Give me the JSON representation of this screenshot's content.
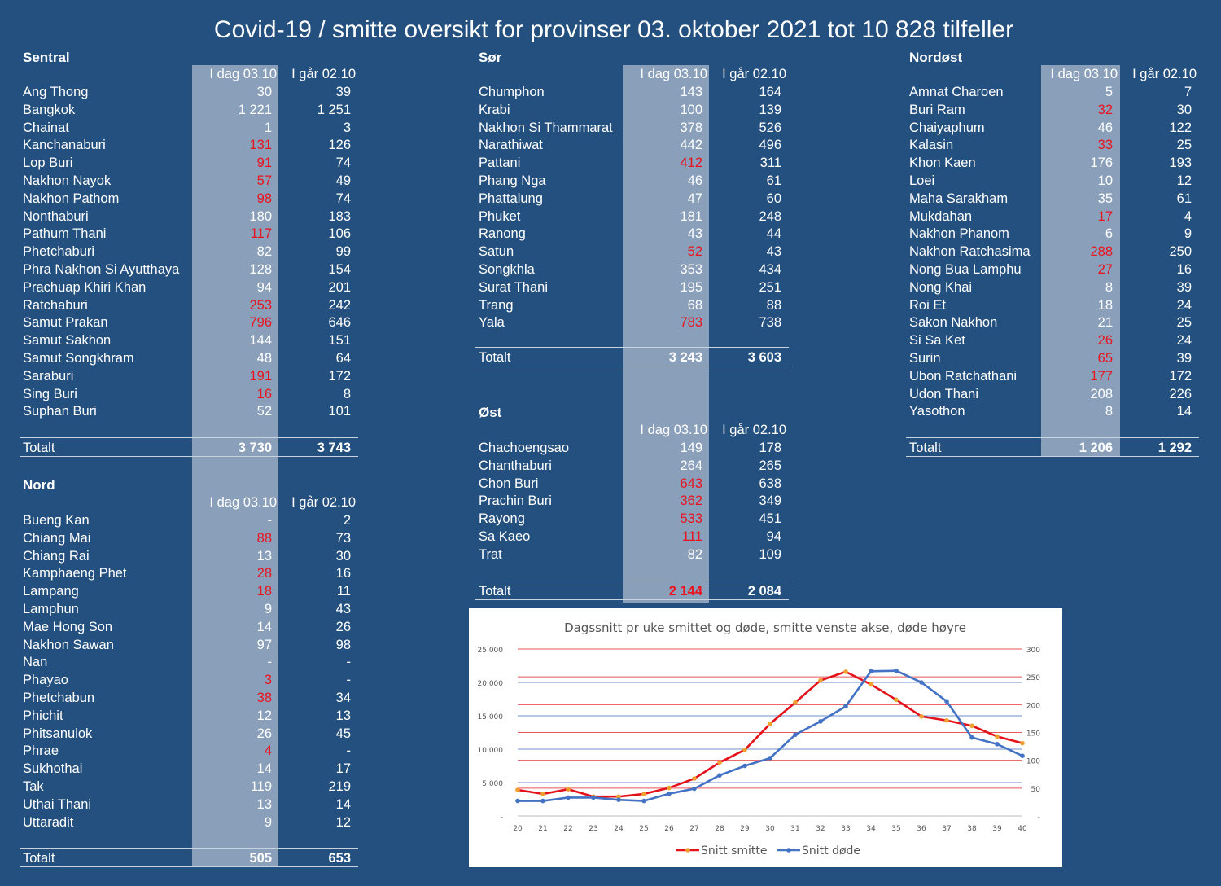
{
  "title": "Covid-19 / smitte oversikt for provinser 03. oktober 2021 tot 10 828 tilfeller",
  "col_today": "I dag 03.10",
  "col_yesterday": "I går 02.10",
  "colors": {
    "background": "#24507f",
    "shade": "#8a9fba",
    "increase": "#e8141f"
  },
  "sections": {
    "sentral": {
      "title": "Sentral",
      "rows": [
        {
          "name": "Ang Thong",
          "today": "30",
          "yesterday": "39",
          "up": false
        },
        {
          "name": "Bangkok",
          "today": "1 221",
          "yesterday": "1 251",
          "up": false
        },
        {
          "name": "Chainat",
          "today": "1",
          "yesterday": "3",
          "up": false
        },
        {
          "name": "Kanchanaburi",
          "today": "131",
          "yesterday": "126",
          "up": true
        },
        {
          "name": "Lop Buri",
          "today": "91",
          "yesterday": "74",
          "up": true
        },
        {
          "name": "Nakhon Nayok",
          "today": "57",
          "yesterday": "49",
          "up": true
        },
        {
          "name": "Nakhon Pathom",
          "today": "98",
          "yesterday": "74",
          "up": true
        },
        {
          "name": "Nonthaburi",
          "today": "180",
          "yesterday": "183",
          "up": false
        },
        {
          "name": "Pathum Thani",
          "today": "117",
          "yesterday": "106",
          "up": true
        },
        {
          "name": "Phetchaburi",
          "today": "82",
          "yesterday": "99",
          "up": false
        },
        {
          "name": "Phra Nakhon Si Ayutthaya",
          "today": "128",
          "yesterday": "154",
          "up": false
        },
        {
          "name": "Prachuap Khiri Khan",
          "today": "94",
          "yesterday": "201",
          "up": false
        },
        {
          "name": "Ratchaburi",
          "today": "253",
          "yesterday": "242",
          "up": true
        },
        {
          "name": "Samut Prakan",
          "today": "796",
          "yesterday": "646",
          "up": true
        },
        {
          "name": "Samut Sakhon",
          "today": "144",
          "yesterday": "151",
          "up": false
        },
        {
          "name": "Samut Songkhram",
          "today": "48",
          "yesterday": "64",
          "up": false
        },
        {
          "name": "Saraburi",
          "today": "191",
          "yesterday": "172",
          "up": true
        },
        {
          "name": "Sing Buri",
          "today": "16",
          "yesterday": "8",
          "up": true
        },
        {
          "name": "Suphan Buri",
          "today": "52",
          "yesterday": "101",
          "up": false
        }
      ],
      "total": {
        "label": "Totalt",
        "today": "3 730",
        "yesterday": "3 743",
        "up": false
      }
    },
    "nord": {
      "title": "Nord",
      "rows": [
        {
          "name": "Bueng Kan",
          "today": "-",
          "yesterday": "2",
          "up": false
        },
        {
          "name": "Chiang Mai",
          "today": "88",
          "yesterday": "73",
          "up": true
        },
        {
          "name": "Chiang Rai",
          "today": "13",
          "yesterday": "30",
          "up": false
        },
        {
          "name": "Kamphaeng Phet",
          "today": "28",
          "yesterday": "16",
          "up": true
        },
        {
          "name": "Lampang",
          "today": "18",
          "yesterday": "11",
          "up": true
        },
        {
          "name": "Lamphun",
          "today": "9",
          "yesterday": "43",
          "up": false
        },
        {
          "name": "Mae Hong Son",
          "today": "14",
          "yesterday": "26",
          "up": false
        },
        {
          "name": "Nakhon Sawan",
          "today": "97",
          "yesterday": "98",
          "up": false
        },
        {
          "name": "Nan",
          "today": "-",
          "yesterday": "-",
          "up": false
        },
        {
          "name": "Phayao",
          "today": "3",
          "yesterday": "-",
          "up": true
        },
        {
          "name": "Phetchabun",
          "today": "38",
          "yesterday": "34",
          "up": true
        },
        {
          "name": "Phichit",
          "today": "12",
          "yesterday": "13",
          "up": false
        },
        {
          "name": "Phitsanulok",
          "today": "26",
          "yesterday": "45",
          "up": false
        },
        {
          "name": "Phrae",
          "today": "4",
          "yesterday": "-",
          "up": true
        },
        {
          "name": "Sukhothai",
          "today": "14",
          "yesterday": "17",
          "up": false
        },
        {
          "name": "Tak",
          "today": "119",
          "yesterday": "219",
          "up": false
        },
        {
          "name": "Uthai Thani",
          "today": "13",
          "yesterday": "14",
          "up": false
        },
        {
          "name": "Uttaradit",
          "today": "9",
          "yesterday": "12",
          "up": false
        }
      ],
      "total": {
        "label": "Totalt",
        "today": "505",
        "yesterday": "653",
        "up": false
      }
    },
    "sor": {
      "title": "Sør",
      "rows": [
        {
          "name": "Chumphon",
          "today": "143",
          "yesterday": "164",
          "up": false
        },
        {
          "name": "Krabi",
          "today": "100",
          "yesterday": "139",
          "up": false
        },
        {
          "name": "Nakhon Si Thammarat",
          "today": "378",
          "yesterday": "526",
          "up": false
        },
        {
          "name": "Narathiwat",
          "today": "442",
          "yesterday": "496",
          "up": false
        },
        {
          "name": "Pattani",
          "today": "412",
          "yesterday": "311",
          "up": true
        },
        {
          "name": "Phang Nga",
          "today": "46",
          "yesterday": "61",
          "up": false
        },
        {
          "name": "Phattalung",
          "today": "47",
          "yesterday": "60",
          "up": false
        },
        {
          "name": "Phuket",
          "today": "181",
          "yesterday": "248",
          "up": false
        },
        {
          "name": "Ranong",
          "today": "43",
          "yesterday": "44",
          "up": false
        },
        {
          "name": "Satun",
          "today": "52",
          "yesterday": "43",
          "up": true
        },
        {
          "name": "Songkhla",
          "today": "353",
          "yesterday": "434",
          "up": false
        },
        {
          "name": "Surat Thani",
          "today": "195",
          "yesterday": "251",
          "up": false
        },
        {
          "name": "Trang",
          "today": "68",
          "yesterday": "88",
          "up": false
        },
        {
          "name": "Yala",
          "today": "783",
          "yesterday": "738",
          "up": true
        }
      ],
      "total": {
        "label": "Totalt",
        "today": "3 243",
        "yesterday": "3 603",
        "up": false
      }
    },
    "ost": {
      "title": "Øst",
      "rows": [
        {
          "name": "Chachoengsao",
          "today": "149",
          "yesterday": "178",
          "up": false
        },
        {
          "name": "Chanthaburi",
          "today": "264",
          "yesterday": "265",
          "up": false
        },
        {
          "name": "Chon Buri",
          "today": "643",
          "yesterday": "638",
          "up": true
        },
        {
          "name": "Prachin Buri",
          "today": "362",
          "yesterday": "349",
          "up": true
        },
        {
          "name": "Rayong",
          "today": "533",
          "yesterday": "451",
          "up": true
        },
        {
          "name": "Sa Kaeo",
          "today": "111",
          "yesterday": "94",
          "up": true
        },
        {
          "name": "Trat",
          "today": "82",
          "yesterday": "109",
          "up": false
        }
      ],
      "total": {
        "label": "Totalt",
        "today": "2 144",
        "yesterday": "2 084",
        "up": true
      }
    },
    "nordost": {
      "title": "Nordøst",
      "rows": [
        {
          "name": "Amnat Charoen",
          "today": "5",
          "yesterday": "7",
          "up": false
        },
        {
          "name": "Buri Ram",
          "today": "32",
          "yesterday": "30",
          "up": true
        },
        {
          "name": "Chaiyaphum",
          "today": "46",
          "yesterday": "122",
          "up": false
        },
        {
          "name": "Kalasin",
          "today": "33",
          "yesterday": "25",
          "up": true
        },
        {
          "name": "Khon Kaen",
          "today": "176",
          "yesterday": "193",
          "up": false
        },
        {
          "name": "Loei",
          "today": "10",
          "yesterday": "12",
          "up": false
        },
        {
          "name": "Maha Sarakham",
          "today": "35",
          "yesterday": "61",
          "up": false
        },
        {
          "name": "Mukdahan",
          "today": "17",
          "yesterday": "4",
          "up": true
        },
        {
          "name": "Nakhon Phanom",
          "today": "6",
          "yesterday": "9",
          "up": false
        },
        {
          "name": "Nakhon Ratchasima",
          "today": "288",
          "yesterday": "250",
          "up": true
        },
        {
          "name": "Nong Bua Lamphu",
          "today": "27",
          "yesterday": "16",
          "up": true
        },
        {
          "name": "Nong Khai",
          "today": "8",
          "yesterday": "39",
          "up": false
        },
        {
          "name": "Roi Et",
          "today": "18",
          "yesterday": "24",
          "up": false
        },
        {
          "name": "Sakon Nakhon",
          "today": "21",
          "yesterday": "25",
          "up": false
        },
        {
          "name": "Si Sa Ket",
          "today": "26",
          "yesterday": "24",
          "up": true
        },
        {
          "name": "Surin",
          "today": "65",
          "yesterday": "39",
          "up": true
        },
        {
          "name": "Ubon Ratchathani",
          "today": "177",
          "yesterday": "172",
          "up": true
        },
        {
          "name": "Udon Thani",
          "today": "208",
          "yesterday": "226",
          "up": false
        },
        {
          "name": "Yasothon",
          "today": "8",
          "yesterday": "14",
          "up": false
        }
      ],
      "total": {
        "label": "Totalt",
        "today": "1 206",
        "yesterday": "1 292",
        "up": false
      }
    }
  },
  "chart_data": {
    "type": "line",
    "title": "Dagssnitt pr uke smittet og døde, smitte venste akse, døde høyre",
    "x": [
      20,
      21,
      22,
      23,
      24,
      25,
      26,
      27,
      28,
      29,
      30,
      31,
      32,
      33,
      34,
      35,
      36,
      37,
      38,
      39,
      40
    ],
    "y_left_ticks": [
      "-",
      "5 000",
      "10 000",
      "15 000",
      "20 000",
      "25 000"
    ],
    "y_right_ticks": [
      "-",
      "50",
      "100",
      "150",
      "200",
      "250",
      "300"
    ],
    "ylim_left": [
      0,
      25000
    ],
    "ylim_right": [
      0,
      300
    ],
    "series": [
      {
        "name": "Snitt smitte",
        "axis": "left",
        "color": "#e3121b",
        "marker_color": "#f0a030",
        "values": [
          3900,
          3300,
          4000,
          2900,
          2900,
          3300,
          4200,
          5600,
          8000,
          9900,
          13800,
          17000,
          20300,
          21600,
          19700,
          17400,
          14900,
          14300,
          13500,
          11900,
          10900
        ]
      },
      {
        "name": "Snitt døde",
        "axis": "right",
        "color": "#4472c4",
        "marker_color": "#4472c4",
        "values": [
          27,
          27,
          33,
          33,
          29,
          27,
          40,
          49,
          73,
          90,
          104,
          146,
          170,
          197,
          260,
          261,
          240,
          206,
          141,
          129,
          108
        ]
      }
    ],
    "grid": true,
    "legend": "bottom"
  }
}
